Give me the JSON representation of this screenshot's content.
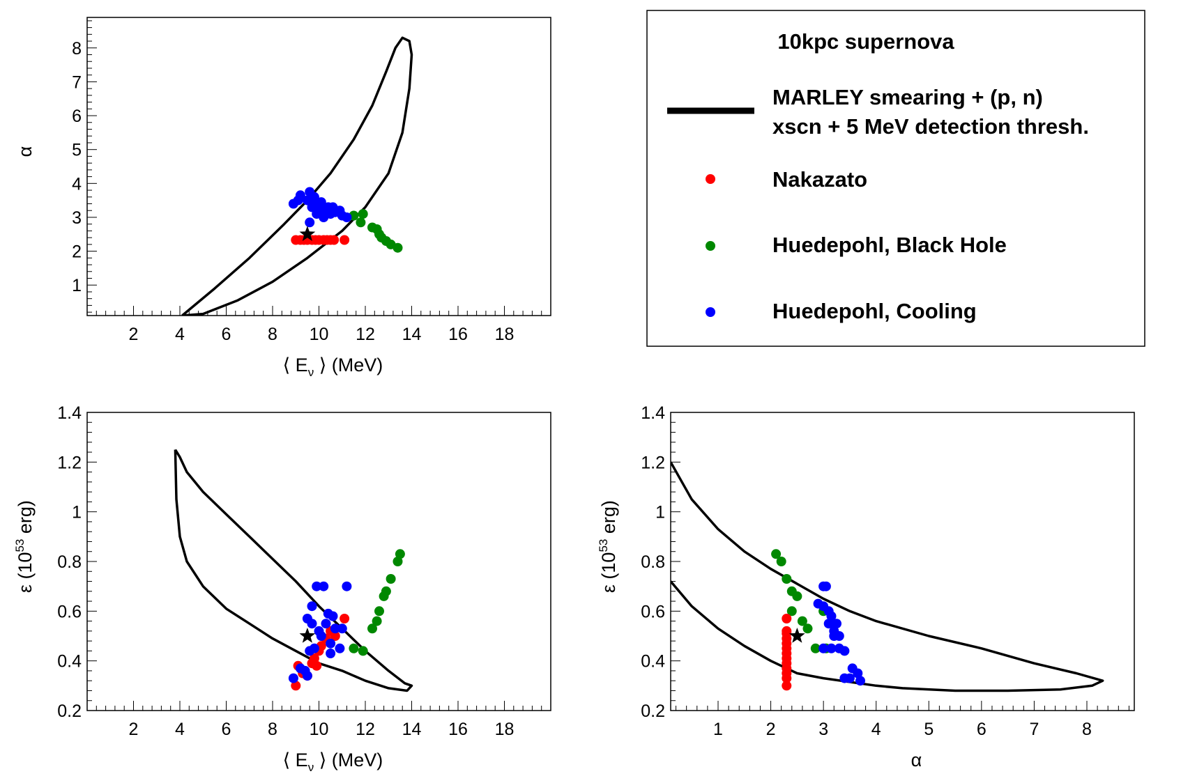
{
  "legend": {
    "title": "10kpc supernova",
    "entries": [
      {
        "kind": "line",
        "label_line1": "MARLEY smearing + (p, n)",
        "label_line2": "xscn + 5 MeV detection thresh.",
        "color": "#000000"
      },
      {
        "kind": "marker",
        "label": "Nakazato",
        "color": "#ff0000"
      },
      {
        "kind": "marker",
        "label": "Huedepohl, Black Hole",
        "color": "#008800"
      },
      {
        "kind": "marker",
        "label": "Huedepohl, Cooling",
        "color": "#0000ff"
      }
    ]
  },
  "chart_data": [
    {
      "id": "alpha_vs_E",
      "type": "scatter",
      "xlabel": "⟨ Eν ⟩ (MeV)",
      "ylabel": "α",
      "xlim": [
        0,
        20
      ],
      "ylim": [
        0.1,
        8.9
      ],
      "xticks": [
        2,
        4,
        6,
        8,
        10,
        12,
        14,
        16,
        18
      ],
      "yticks": [
        1,
        2,
        3,
        4,
        5,
        6,
        7,
        8
      ],
      "contour": [
        [
          4.1,
          0.1
        ],
        [
          5.5,
          0.9
        ],
        [
          7.0,
          1.8
        ],
        [
          8.5,
          2.8
        ],
        [
          9.5,
          3.5
        ],
        [
          10.5,
          4.3
        ],
        [
          11.5,
          5.3
        ],
        [
          12.3,
          6.3
        ],
        [
          12.9,
          7.3
        ],
        [
          13.3,
          8.0
        ],
        [
          13.6,
          8.3
        ],
        [
          13.9,
          8.2
        ],
        [
          14.0,
          7.8
        ],
        [
          13.9,
          6.8
        ],
        [
          13.6,
          5.5
        ],
        [
          13.0,
          4.3
        ],
        [
          12.0,
          3.3
        ],
        [
          11.0,
          2.6
        ],
        [
          9.5,
          1.8
        ],
        [
          8.0,
          1.1
        ],
        [
          6.5,
          0.55
        ],
        [
          5.0,
          0.15
        ],
        [
          4.1,
          0.1
        ]
      ],
      "series": [
        {
          "name": "Nakazato",
          "color": "#ff0000",
          "points": [
            [
              9.0,
              2.33
            ],
            [
              9.2,
              2.33
            ],
            [
              9.35,
              2.33
            ],
            [
              9.5,
              2.33
            ],
            [
              9.7,
              2.33
            ],
            [
              9.85,
              2.33
            ],
            [
              10.0,
              2.33
            ],
            [
              10.2,
              2.33
            ],
            [
              10.35,
              2.33
            ],
            [
              10.5,
              2.33
            ],
            [
              10.65,
              2.33
            ],
            [
              11.1,
              2.33
            ]
          ]
        },
        {
          "name": "Huedepohl, Black Hole",
          "color": "#008800",
          "points": [
            [
              11.5,
              3.05
            ],
            [
              11.9,
              3.1
            ],
            [
              11.8,
              2.85
            ],
            [
              12.3,
              2.7
            ],
            [
              12.5,
              2.65
            ],
            [
              12.6,
              2.5
            ],
            [
              12.7,
              2.4
            ],
            [
              12.9,
              2.3
            ],
            [
              13.1,
              2.2
            ],
            [
              13.4,
              2.1
            ]
          ]
        },
        {
          "name": "Huedepohl, Cooling",
          "color": "#0000ff",
          "points": [
            [
              8.9,
              3.4
            ],
            [
              9.1,
              3.5
            ],
            [
              9.2,
              3.65
            ],
            [
              9.5,
              3.5
            ],
            [
              9.6,
              3.75
            ],
            [
              9.6,
              2.85
            ],
            [
              9.7,
              3.3
            ],
            [
              9.8,
              3.45
            ],
            [
              9.9,
              3.1
            ],
            [
              10.0,
              3.35
            ],
            [
              10.1,
              3.2
            ],
            [
              10.2,
              3.0
            ],
            [
              10.3,
              3.25
            ],
            [
              10.4,
              3.3
            ],
            [
              10.5,
              3.1
            ],
            [
              10.6,
              3.3
            ],
            [
              10.7,
              3.15
            ],
            [
              10.9,
              3.2
            ],
            [
              11.0,
              3.05
            ],
            [
              11.2,
              3.0
            ],
            [
              9.8,
              3.6
            ],
            [
              10.1,
              3.45
            ]
          ]
        }
      ],
      "star": [
        9.5,
        2.5
      ]
    },
    {
      "id": "eps_vs_E",
      "type": "scatter",
      "xlabel": "⟨ Eν ⟩ (MeV)",
      "ylabel": "ε (10^53 erg)",
      "xlim": [
        0,
        20
      ],
      "ylim": [
        0.2,
        1.4
      ],
      "xticks": [
        2,
        4,
        6,
        8,
        10,
        12,
        14,
        16,
        18
      ],
      "yticks": [
        0.2,
        0.4,
        0.6,
        0.8,
        1,
        1.2,
        1.4
      ],
      "contour": [
        [
          3.8,
          1.25
        ],
        [
          4.0,
          1.22
        ],
        [
          4.3,
          1.16
        ],
        [
          5.0,
          1.08
        ],
        [
          6.0,
          0.99
        ],
        [
          7.0,
          0.9
        ],
        [
          8.0,
          0.81
        ],
        [
          9.0,
          0.72
        ],
        [
          10.0,
          0.62
        ],
        [
          11.0,
          0.53
        ],
        [
          12.0,
          0.44
        ],
        [
          13.0,
          0.36
        ],
        [
          13.7,
          0.31
        ],
        [
          14.0,
          0.3
        ],
        [
          13.8,
          0.28
        ],
        [
          13.0,
          0.29
        ],
        [
          12.0,
          0.32
        ],
        [
          11.0,
          0.36
        ],
        [
          10.0,
          0.39
        ],
        [
          9.0,
          0.44
        ],
        [
          8.0,
          0.49
        ],
        [
          7.0,
          0.55
        ],
        [
          6.0,
          0.61
        ],
        [
          5.0,
          0.7
        ],
        [
          4.3,
          0.8
        ],
        [
          4.0,
          0.9
        ],
        [
          3.85,
          1.05
        ],
        [
          3.8,
          1.25
        ]
      ],
      "series": [
        {
          "name": "Nakazato",
          "color": "#ff0000",
          "points": [
            [
              9.0,
              0.3
            ],
            [
              9.1,
              0.38
            ],
            [
              9.3,
              0.35
            ],
            [
              9.5,
              0.34
            ],
            [
              9.7,
              0.39
            ],
            [
              9.8,
              0.41
            ],
            [
              9.9,
              0.38
            ],
            [
              10.0,
              0.44
            ],
            [
              10.1,
              0.46
            ],
            [
              10.3,
              0.49
            ],
            [
              10.5,
              0.52
            ],
            [
              10.7,
              0.5
            ],
            [
              11.1,
              0.57
            ]
          ]
        },
        {
          "name": "Huedepohl, Black Hole",
          "color": "#008800",
          "points": [
            [
              11.5,
              0.45
            ],
            [
              11.9,
              0.44
            ],
            [
              12.3,
              0.53
            ],
            [
              12.5,
              0.56
            ],
            [
              12.6,
              0.6
            ],
            [
              12.8,
              0.66
            ],
            [
              12.9,
              0.68
            ],
            [
              13.1,
              0.73
            ],
            [
              13.4,
              0.8
            ],
            [
              13.5,
              0.83
            ]
          ]
        },
        {
          "name": "Huedepohl, Cooling",
          "color": "#0000ff",
          "points": [
            [
              8.9,
              0.33
            ],
            [
              9.2,
              0.37
            ],
            [
              9.4,
              0.36
            ],
            [
              9.5,
              0.34
            ],
            [
              9.5,
              0.57
            ],
            [
              9.6,
              0.44
            ],
            [
              9.7,
              0.55
            ],
            [
              9.7,
              0.62
            ],
            [
              9.8,
              0.45
            ],
            [
              9.9,
              0.7
            ],
            [
              10.0,
              0.52
            ],
            [
              10.1,
              0.5
            ],
            [
              10.2,
              0.7
            ],
            [
              10.3,
              0.55
            ],
            [
              10.4,
              0.59
            ],
            [
              10.5,
              0.47
            ],
            [
              10.5,
              0.43
            ],
            [
              10.6,
              0.58
            ],
            [
              10.7,
              0.53
            ],
            [
              10.9,
              0.45
            ],
            [
              11.0,
              0.53
            ],
            [
              11.2,
              0.7
            ]
          ]
        }
      ],
      "star": [
        9.5,
        0.5
      ]
    },
    {
      "id": "eps_vs_alpha",
      "type": "scatter",
      "xlabel": "α",
      "ylabel": "ε (10^53 erg)",
      "xlim": [
        0.1,
        8.9
      ],
      "ylim": [
        0.2,
        1.4
      ],
      "xticks": [
        1,
        2,
        3,
        4,
        5,
        6,
        7,
        8
      ],
      "yticks": [
        0.2,
        0.4,
        0.6,
        0.8,
        1,
        1.2,
        1.4
      ],
      "contour": [
        [
          0.1,
          1.2
        ],
        [
          0.5,
          1.05
        ],
        [
          1.0,
          0.93
        ],
        [
          1.5,
          0.84
        ],
        [
          2.0,
          0.77
        ],
        [
          2.5,
          0.71
        ],
        [
          3.0,
          0.65
        ],
        [
          3.5,
          0.6
        ],
        [
          4.0,
          0.56
        ],
        [
          5.0,
          0.5
        ],
        [
          6.0,
          0.45
        ],
        [
          7.0,
          0.39
        ],
        [
          7.8,
          0.35
        ],
        [
          8.3,
          0.32
        ],
        [
          8.1,
          0.3
        ],
        [
          7.5,
          0.285
        ],
        [
          6.5,
          0.28
        ],
        [
          5.5,
          0.28
        ],
        [
          4.5,
          0.29
        ],
        [
          4.0,
          0.3
        ],
        [
          3.0,
          0.33
        ],
        [
          2.5,
          0.35
        ],
        [
          2.0,
          0.4
        ],
        [
          1.5,
          0.46
        ],
        [
          1.0,
          0.53
        ],
        [
          0.5,
          0.62
        ],
        [
          0.1,
          0.72
        ]
      ],
      "series": [
        {
          "name": "Nakazato",
          "color": "#ff0000",
          "points": [
            [
              2.3,
              0.3
            ],
            [
              2.3,
              0.33
            ],
            [
              2.3,
              0.35
            ],
            [
              2.3,
              0.37
            ],
            [
              2.3,
              0.39
            ],
            [
              2.3,
              0.41
            ],
            [
              2.3,
              0.43
            ],
            [
              2.3,
              0.45
            ],
            [
              2.3,
              0.47
            ],
            [
              2.3,
              0.49
            ],
            [
              2.3,
              0.51
            ],
            [
              2.3,
              0.52
            ],
            [
              2.3,
              0.57
            ]
          ]
        },
        {
          "name": "Huedepohl, Black Hole",
          "color": "#008800",
          "points": [
            [
              2.1,
              0.83
            ],
            [
              2.2,
              0.8
            ],
            [
              2.3,
              0.73
            ],
            [
              2.4,
              0.68
            ],
            [
              2.5,
              0.66
            ],
            [
              2.4,
              0.6
            ],
            [
              2.6,
              0.56
            ],
            [
              2.7,
              0.53
            ],
            [
              2.85,
              0.45
            ],
            [
              3.0,
              0.6
            ],
            [
              3.05,
              0.45
            ]
          ]
        },
        {
          "name": "Huedepohl, Cooling",
          "color": "#0000ff",
          "points": [
            [
              2.9,
              0.63
            ],
            [
              3.0,
              0.7
            ],
            [
              3.05,
              0.7
            ],
            [
              3.0,
              0.62
            ],
            [
              3.1,
              0.6
            ],
            [
              3.1,
              0.55
            ],
            [
              3.15,
              0.58
            ],
            [
              3.2,
              0.52
            ],
            [
              3.2,
              0.5
            ],
            [
              3.25,
              0.55
            ],
            [
              3.3,
              0.5
            ],
            [
              3.15,
              0.45
            ],
            [
              3.3,
              0.45
            ],
            [
              3.4,
              0.44
            ],
            [
              3.4,
              0.33
            ],
            [
              3.5,
              0.33
            ],
            [
              3.55,
              0.37
            ],
            [
              3.65,
              0.35
            ],
            [
              3.7,
              0.32
            ],
            [
              3.0,
              0.45
            ]
          ]
        }
      ],
      "star": [
        2.5,
        0.5
      ]
    }
  ]
}
